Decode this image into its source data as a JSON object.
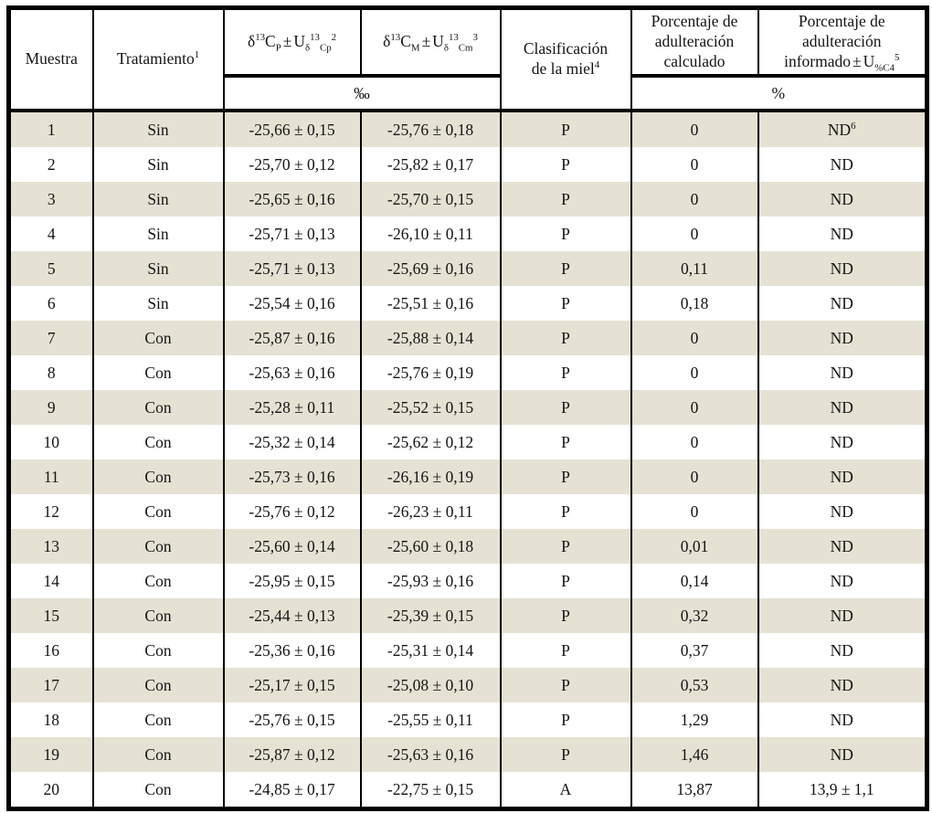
{
  "colors": {
    "row_shade": "#e5e2d4",
    "border": "#000000",
    "background": "#ffffff"
  },
  "table": {
    "headers": {
      "muestra": "Muestra",
      "tratamiento": {
        "text": "Tratamiento",
        "sup": "1"
      },
      "delta_p": {
        "delta": "δ",
        "iso": "13",
        "c": "C",
        "sub": "P",
        "pm": "±",
        "u": "U",
        "usub_delta": "δ",
        "usup_iso": "13",
        "usub": "Cp",
        "usup_end": "2"
      },
      "delta_m": {
        "delta": "δ",
        "iso": "13",
        "c": "C",
        "sub": "M",
        "pm": "±",
        "u": "U",
        "usub_delta": "δ",
        "usup_iso": "13",
        "usub": "Cm",
        "usup_end": "3"
      },
      "clasificacion": {
        "line1": "Clasificación",
        "line2": "de la miel",
        "sup": "4"
      },
      "calculado": {
        "line1": "Porcentaje de",
        "line2": "adulteración",
        "line3": "calculado"
      },
      "informado": {
        "line1": "Porcentaje de",
        "line2": "adulteración",
        "line3_text": "informado",
        "pm": "±",
        "u": "U",
        "usub": "%C4",
        "usup": "5"
      },
      "unit_permille": "‰",
      "unit_percent": "%"
    },
    "rows": [
      {
        "muestra": "1",
        "tratamiento": "Sin",
        "delta_p": "-25,66 ± 0,15",
        "delta_m": "-25,76 ± 0,18",
        "clasificacion": "P",
        "calculado": "0",
        "informado": "ND",
        "informado_sup": "6"
      },
      {
        "muestra": "2",
        "tratamiento": "Sin",
        "delta_p": "-25,70 ± 0,12",
        "delta_m": "-25,82 ± 0,17",
        "clasificacion": "P",
        "calculado": "0",
        "informado": "ND"
      },
      {
        "muestra": "3",
        "tratamiento": "Sin",
        "delta_p": "-25,65 ± 0,16",
        "delta_m": "-25,70 ± 0,15",
        "clasificacion": "P",
        "calculado": "0",
        "informado": "ND"
      },
      {
        "muestra": "4",
        "tratamiento": "Sin",
        "delta_p": "-25,71 ± 0,13",
        "delta_m": "-26,10 ± 0,11",
        "clasificacion": "P",
        "calculado": "0",
        "informado": "ND"
      },
      {
        "muestra": "5",
        "tratamiento": "Sin",
        "delta_p": "-25,71 ± 0,13",
        "delta_m": "-25,69 ± 0,16",
        "clasificacion": "P",
        "calculado": "0,11",
        "informado": "ND"
      },
      {
        "muestra": "6",
        "tratamiento": "Sin",
        "delta_p": "-25,54 ± 0,16",
        "delta_m": "-25,51 ± 0,16",
        "clasificacion": "P",
        "calculado": "0,18",
        "informado": "ND"
      },
      {
        "muestra": "7",
        "tratamiento": "Con",
        "delta_p": "-25,87 ± 0,16",
        "delta_m": "-25,88 ± 0,14",
        "clasificacion": "P",
        "calculado": "0",
        "informado": "ND"
      },
      {
        "muestra": "8",
        "tratamiento": "Con",
        "delta_p": "-25,63 ± 0,16",
        "delta_m": "-25,76 ± 0,19",
        "clasificacion": "P",
        "calculado": "0",
        "informado": "ND"
      },
      {
        "muestra": "9",
        "tratamiento": "Con",
        "delta_p": "-25,28 ± 0,11",
        "delta_m": "-25,52 ± 0,15",
        "clasificacion": "P",
        "calculado": "0",
        "informado": "ND"
      },
      {
        "muestra": "10",
        "tratamiento": "Con",
        "delta_p": "-25,32 ± 0,14",
        "delta_m": "-25,62 ± 0,12",
        "clasificacion": "P",
        "calculado": "0",
        "informado": "ND"
      },
      {
        "muestra": "11",
        "tratamiento": "Con",
        "delta_p": "-25,73 ± 0,16",
        "delta_m": "-26,16 ± 0,19",
        "clasificacion": "P",
        "calculado": "0",
        "informado": "ND"
      },
      {
        "muestra": "12",
        "tratamiento": "Con",
        "delta_p": "-25,76 ± 0,12",
        "delta_m": "-26,23 ± 0,11",
        "clasificacion": "P",
        "calculado": "0",
        "informado": "ND"
      },
      {
        "muestra": "13",
        "tratamiento": "Con",
        "delta_p": "-25,60 ± 0,14",
        "delta_m": "-25,60 ± 0,18",
        "clasificacion": "P",
        "calculado": "0,01",
        "informado": "ND"
      },
      {
        "muestra": "14",
        "tratamiento": "Con",
        "delta_p": "-25,95 ± 0,15",
        "delta_m": "-25,93 ± 0,16",
        "clasificacion": "P",
        "calculado": "0,14",
        "informado": "ND"
      },
      {
        "muestra": "15",
        "tratamiento": "Con",
        "delta_p": "-25,44 ± 0,13",
        "delta_m": "-25,39 ± 0,15",
        "clasificacion": "P",
        "calculado": "0,32",
        "informado": "ND"
      },
      {
        "muestra": "16",
        "tratamiento": "Con",
        "delta_p": "-25,36 ± 0,16",
        "delta_m": "-25,31 ± 0,14",
        "clasificacion": "P",
        "calculado": "0,37",
        "informado": "ND"
      },
      {
        "muestra": "17",
        "tratamiento": "Con",
        "delta_p": "-25,17 ± 0,15",
        "delta_m": "-25,08 ± 0,10",
        "clasificacion": "P",
        "calculado": "0,53",
        "informado": "ND"
      },
      {
        "muestra": "18",
        "tratamiento": "Con",
        "delta_p": "-25,76 ± 0,15",
        "delta_m": "-25,55 ± 0,11",
        "clasificacion": "P",
        "calculado": "1,29",
        "informado": "ND"
      },
      {
        "muestra": "19",
        "tratamiento": "Con",
        "delta_p": "-25,87 ± 0,12",
        "delta_m": "-25,63 ± 0,16",
        "clasificacion": "P",
        "calculado": "1,46",
        "informado": "ND"
      },
      {
        "muestra": "20",
        "tratamiento": "Con",
        "delta_p": "-24,85 ± 0,17",
        "delta_m": "-22,75 ± 0,15",
        "clasificacion": "A",
        "calculado": "13,87",
        "informado": "13,9 ± 1,1"
      }
    ]
  }
}
